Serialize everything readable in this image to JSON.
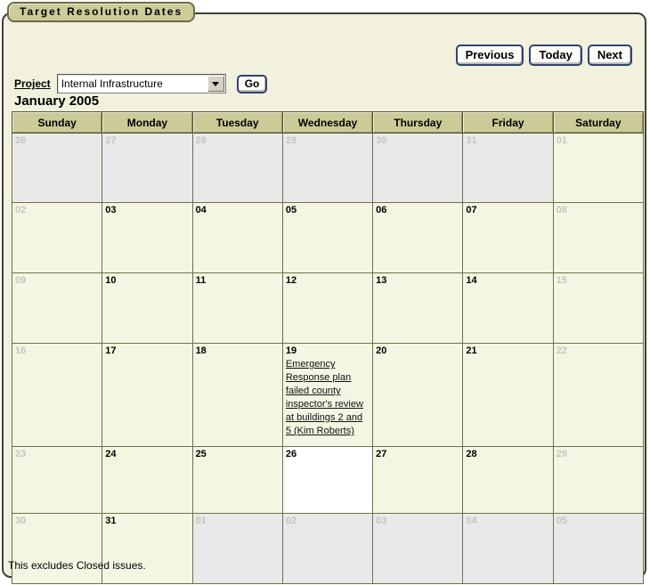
{
  "panel": {
    "title": "Target Resolution Dates",
    "footnote": "This excludes Closed issues."
  },
  "toolbar": {
    "previous_label": "Previous",
    "today_label": "Today",
    "next_label": "Next"
  },
  "project": {
    "label": "Project",
    "selected": "Internal Infrastructure",
    "go_label": "Go"
  },
  "calendar": {
    "month_title": "January 2005",
    "day_headers": [
      "Sunday",
      "Monday",
      "Tuesday",
      "Wednesday",
      "Thursday",
      "Friday",
      "Saturday"
    ],
    "weeks": [
      [
        {
          "day": "26",
          "type": "prev"
        },
        {
          "day": "27",
          "type": "prev"
        },
        {
          "day": "28",
          "type": "prev"
        },
        {
          "day": "29",
          "type": "prev"
        },
        {
          "day": "30",
          "type": "prev"
        },
        {
          "day": "31",
          "type": "prev"
        },
        {
          "day": "01",
          "type": "weekend"
        }
      ],
      [
        {
          "day": "02",
          "type": "weekend"
        },
        {
          "day": "03",
          "type": "weekday"
        },
        {
          "day": "04",
          "type": "weekday"
        },
        {
          "day": "05",
          "type": "weekday"
        },
        {
          "day": "06",
          "type": "weekday"
        },
        {
          "day": "07",
          "type": "weekday"
        },
        {
          "day": "08",
          "type": "weekend"
        }
      ],
      [
        {
          "day": "09",
          "type": "weekend"
        },
        {
          "day": "10",
          "type": "weekday"
        },
        {
          "day": "11",
          "type": "weekday"
        },
        {
          "day": "12",
          "type": "weekday"
        },
        {
          "day": "13",
          "type": "weekday"
        },
        {
          "day": "14",
          "type": "weekday"
        },
        {
          "day": "15",
          "type": "weekend"
        }
      ],
      [
        {
          "day": "16",
          "type": "weekend"
        },
        {
          "day": "17",
          "type": "weekday"
        },
        {
          "day": "18",
          "type": "weekday"
        },
        {
          "day": "19",
          "type": "weekday",
          "event": "Emergency Response plan failed county inspector's review at buildings 2 and 5 (Kim Roberts)"
        },
        {
          "day": "20",
          "type": "weekday"
        },
        {
          "day": "21",
          "type": "weekday"
        },
        {
          "day": "22",
          "type": "weekend"
        }
      ],
      [
        {
          "day": "23",
          "type": "weekend"
        },
        {
          "day": "24",
          "type": "weekday"
        },
        {
          "day": "25",
          "type": "weekday"
        },
        {
          "day": "26",
          "type": "today"
        },
        {
          "day": "27",
          "type": "weekday"
        },
        {
          "day": "28",
          "type": "weekday"
        },
        {
          "day": "29",
          "type": "weekend"
        }
      ],
      [
        {
          "day": "30",
          "type": "weekend"
        },
        {
          "day": "31",
          "type": "weekday"
        },
        {
          "day": "01",
          "type": "prev"
        },
        {
          "day": "02",
          "type": "prev"
        },
        {
          "day": "03",
          "type": "prev"
        },
        {
          "day": "04",
          "type": "prev"
        },
        {
          "day": "05",
          "type": "prev"
        }
      ]
    ]
  },
  "colors": {
    "panel_background": "#f1f1de",
    "tab_background": "#cccc99",
    "header_background": "#cbcb97",
    "current_month_cell": "#f5f5e3",
    "other_month_cell": "#e9e9e9",
    "today_cell": "#ffffff",
    "cell_border": "#70704c",
    "button_border": "#31426e",
    "muted_day_number": "#c3c3c3"
  }
}
